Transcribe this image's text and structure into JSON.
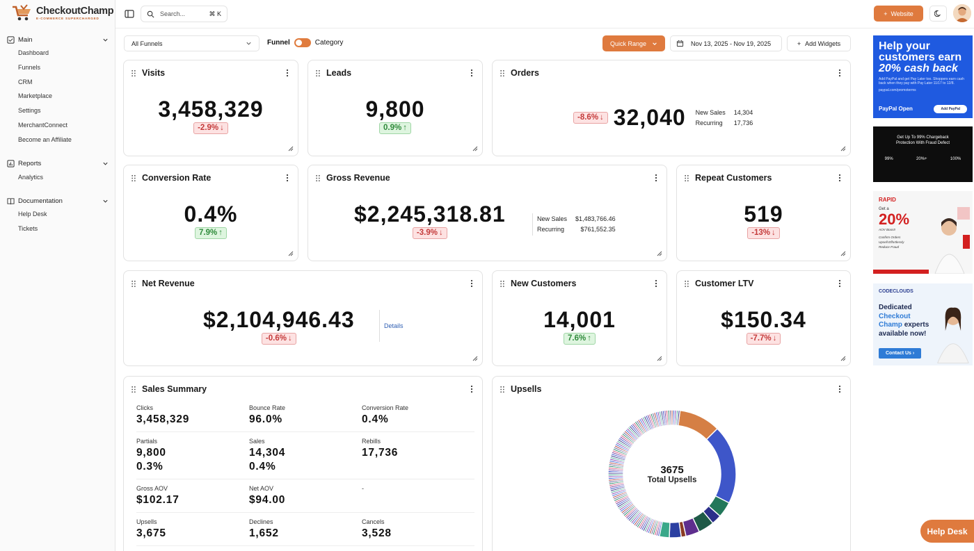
{
  "brand": {
    "name": "CheckoutChamp",
    "tagline": "E-COMMERCE SUPERCHARGED"
  },
  "sidebar": {
    "sections": [
      {
        "label": "Main",
        "icon": "dashboard-square-icon",
        "items": [
          "Dashboard",
          "Funnels",
          "CRM",
          "Marketplace",
          "Settings",
          "MerchantConnect",
          "Become an Affiliate"
        ]
      },
      {
        "label": "Reports",
        "icon": "bar-chart-icon",
        "items": [
          "Analytics"
        ]
      },
      {
        "label": "Documentation",
        "icon": "book-icon",
        "items": [
          "Help Desk",
          "Tickets"
        ]
      }
    ]
  },
  "topbar": {
    "search_placeholder": "Search...",
    "search_shortcut": "⌘ K",
    "website_label": "Website"
  },
  "filters": {
    "funnel_select": "All Funnels",
    "toggle_left": "Funnel",
    "toggle_right": "Category",
    "quick_range": "Quick Range",
    "date_range": "Nov 13, 2025 - Nov 19, 2025",
    "add_widgets": "Add Widgets"
  },
  "cards": {
    "visits": {
      "title": "Visits",
      "value": "3,458,329",
      "change": "-2.9%",
      "trend": "down"
    },
    "leads": {
      "title": "Leads",
      "value": "9,800",
      "change": "0.9%",
      "trend": "up"
    },
    "orders": {
      "title": "Orders",
      "value": "32,040",
      "change": "-8.6%",
      "trend": "down",
      "breakdown": [
        {
          "label": "New Sales",
          "value": "14,304"
        },
        {
          "label": "Recurring",
          "value": "17,736"
        }
      ]
    },
    "conversion_rate": {
      "title": "Conversion Rate",
      "value": "0.4%",
      "change": "7.9%",
      "trend": "up"
    },
    "gross_revenue": {
      "title": "Gross Revenue",
      "value": "$2,245,318.81",
      "change": "-3.9%",
      "trend": "down",
      "breakdown": [
        {
          "label": "New Sales",
          "value": "$1,483,766.46"
        },
        {
          "label": "Recurring",
          "value": "$761,552.35"
        }
      ]
    },
    "repeat_customers": {
      "title": "Repeat Customers",
      "value": "519",
      "change": "-13%",
      "trend": "down"
    },
    "net_revenue": {
      "title": "Net Revenue",
      "value": "$2,104,946.43",
      "change": "-0.6%",
      "trend": "down",
      "details_label": "Details"
    },
    "new_customers": {
      "title": "New Customers",
      "value": "14,001",
      "change": "7.6%",
      "trend": "up"
    },
    "customer_ltv": {
      "title": "Customer LTV",
      "value": "$150.34",
      "change": "-7.7%",
      "trend": "down"
    }
  },
  "sales_summary": {
    "title": "Sales Summary",
    "rows": [
      [
        {
          "label": "Clicks",
          "values": [
            "3,458,329"
          ]
        },
        {
          "label": "Bounce Rate",
          "values": [
            "96.0%"
          ]
        },
        {
          "label": "Conversion Rate",
          "values": [
            "0.4%"
          ]
        }
      ],
      [
        {
          "label": "Partials",
          "values": [
            "9,800",
            "0.3%"
          ]
        },
        {
          "label": "Sales",
          "values": [
            "14,304",
            "0.4%"
          ]
        },
        {
          "label": "Rebills",
          "values": [
            "17,736"
          ]
        }
      ],
      [
        {
          "label": "Gross AOV",
          "values": [
            "$102.17"
          ]
        },
        {
          "label": "Net AOV",
          "values": [
            "$94.00"
          ]
        },
        {
          "label": "-",
          "values": []
        }
      ],
      [
        {
          "label": "Upsells",
          "values": [
            "3,675"
          ]
        },
        {
          "label": "Declines",
          "values": [
            "1,652"
          ]
        },
        {
          "label": "Cancels",
          "values": [
            "3,528"
          ]
        }
      ]
    ]
  },
  "upsells": {
    "title": "Upsells",
    "total": "3675",
    "total_label": "Total Upsells"
  },
  "chart_data": {
    "type": "pie",
    "title": "Upsells",
    "center_value": 3675,
    "center_label": "Total Upsells",
    "segments": [
      {
        "color": "#d57f45",
        "share": 0.105
      },
      {
        "color": "#3e56c9",
        "share": 0.2
      },
      {
        "color": "#22775a",
        "share": 0.04
      },
      {
        "color": "#2b2f8a",
        "share": 0.025
      },
      {
        "color": "#1f5a48",
        "share": 0.04
      },
      {
        "color": "#5e2e8e",
        "share": 0.035
      },
      {
        "color": "#8a3b24",
        "share": 0.012
      },
      {
        "color": "#2b3fa1",
        "share": 0.03
      },
      {
        "color": "#3aa88a",
        "share": 0.025
      }
    ],
    "thin_segment_count": 110,
    "thin_segment_palette": [
      "#3e56c9",
      "#7a3f9e",
      "#d05a7c",
      "#2a8a6b",
      "#6c6c9c",
      "#b04a4a",
      "#4a6fd6",
      "#8c4bb3",
      "#5bb0a0",
      "#3a3a8a"
    ]
  },
  "ads": {
    "paypal": {
      "headline1": "Help your",
      "headline2": "customers earn",
      "headline3": "20% cash back",
      "body": "Add PayPal and get Pay Later too. Shoppers earn cash back when they pay with Pay Later 11/17 to 12/8.",
      "url": "paypal.com/promoterms",
      "brand": "PayPal Open",
      "cta": "Add PayPal"
    },
    "fraud": {
      "line1": "Get Up To 99% Chargeback",
      "line2": "Protection With Fraud Defect",
      "stat1": "99%",
      "stat2": "20%+",
      "stat3": "100%"
    },
    "rapid": {
      "brand": "RAPID",
      "line": "Get a",
      "pct": "20%",
      "sub": "AOV Boost!",
      "b1": "Confirm Orders",
      "b2": "Upsell Effortlessly",
      "b3": "Reduce Fraud"
    },
    "codeclouds": {
      "brand": "CODECLOUDS",
      "t1": "Dedicated",
      "t2": "Checkout",
      "t3": "Champ",
      "t4": "experts",
      "t5": "available now!",
      "cta": "Contact Us"
    }
  },
  "help_desk_label": "Help Desk",
  "colors": {
    "accent": "#df7a3e",
    "down_bg": "#fde2e2",
    "down_text": "#c43a3a",
    "up_bg": "#def5df",
    "up_text": "#2f8a3b"
  }
}
